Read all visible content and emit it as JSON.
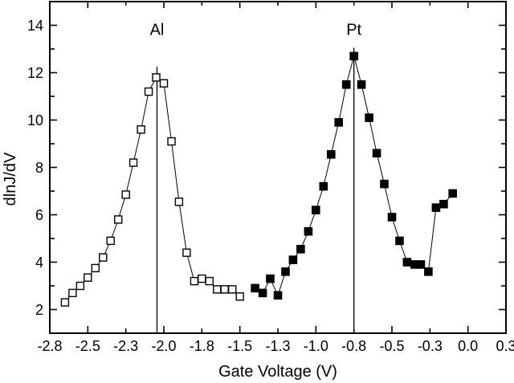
{
  "window": {
    "background": "#ffffff",
    "foreground": "#000000"
  },
  "chart_data": {
    "type": "line",
    "title": "",
    "xlabel": "Gate Voltage (V)",
    "ylabel": "dlnJ/dV",
    "xlim": [
      -2.75,
      0.25
    ],
    "ylim": [
      1,
      15
    ],
    "grid": false,
    "legend": "none",
    "axis_color": "#000000",
    "x_ticks": [
      {
        "value": -2.75,
        "label": "-2.8",
        "major": false
      },
      {
        "value": -2.5,
        "label": "-2.5",
        "major": true
      },
      {
        "value": -2.25,
        "label": "-2.3",
        "major": false
      },
      {
        "value": -2.0,
        "label": "-2.0",
        "major": true
      },
      {
        "value": -1.75,
        "label": "-1.8",
        "major": false
      },
      {
        "value": -1.5,
        "label": "-1.5",
        "major": true
      },
      {
        "value": -1.25,
        "label": "-1.3",
        "major": false
      },
      {
        "value": -1.0,
        "label": "-1.0",
        "major": true
      },
      {
        "value": -0.75,
        "label": "-0.8",
        "major": false
      },
      {
        "value": -0.5,
        "label": "-0.5",
        "major": true
      },
      {
        "value": -0.25,
        "label": "-0.3",
        "major": false
      },
      {
        "value": 0.0,
        "label": "0.0",
        "major": true
      },
      {
        "value": 0.25,
        "label": "0.3",
        "major": false
      }
    ],
    "y_ticks": [
      {
        "value": 2,
        "label": "2",
        "major": true
      },
      {
        "value": 3,
        "label": "",
        "major": false
      },
      {
        "value": 4,
        "label": "4",
        "major": true
      },
      {
        "value": 5,
        "label": "",
        "major": false
      },
      {
        "value": 6,
        "label": "6",
        "major": true
      },
      {
        "value": 7,
        "label": "",
        "major": false
      },
      {
        "value": 8,
        "label": "8",
        "major": true
      },
      {
        "value": 9,
        "label": "",
        "major": false
      },
      {
        "value": 10,
        "label": "10",
        "major": true
      },
      {
        "value": 11,
        "label": "",
        "major": false
      },
      {
        "value": 12,
        "label": "12",
        "major": true
      },
      {
        "value": 13,
        "label": "",
        "major": false
      },
      {
        "value": 14,
        "label": "14",
        "major": true
      }
    ],
    "series": [
      {
        "name": "Al",
        "marker": "open-square",
        "color": "#000000",
        "x": [
          -2.65,
          -2.6,
          -2.55,
          -2.5,
          -2.45,
          -2.4,
          -2.35,
          -2.3,
          -2.25,
          -2.2,
          -2.15,
          -2.1,
          -2.05,
          -2.0,
          -1.95,
          -1.9,
          -1.85,
          -1.8,
          -1.75,
          -1.7,
          -1.65,
          -1.6,
          -1.55,
          -1.5
        ],
        "y": [
          2.3,
          2.7,
          3.0,
          3.35,
          3.75,
          4.2,
          4.9,
          5.8,
          6.85,
          8.2,
          9.6,
          11.2,
          11.8,
          11.55,
          9.1,
          6.55,
          4.4,
          3.2,
          3.3,
          3.2,
          2.85,
          2.85,
          2.85,
          2.55
        ]
      },
      {
        "name": "Pt",
        "marker": "filled-square",
        "color": "#000000",
        "x": [
          -1.4,
          -1.35,
          -1.3,
          -1.25,
          -1.2,
          -1.15,
          -1.1,
          -1.05,
          -1.0,
          -0.95,
          -0.9,
          -0.85,
          -0.8,
          -0.75,
          -0.7,
          -0.65,
          -0.6,
          -0.55,
          -0.5,
          -0.45,
          -0.4,
          -0.35,
          -0.31,
          -0.26,
          -0.21,
          -0.16,
          -0.1
        ],
        "y": [
          2.9,
          2.7,
          3.3,
          2.6,
          3.6,
          4.1,
          4.55,
          5.3,
          6.2,
          7.2,
          8.55,
          9.9,
          11.5,
          12.7,
          11.5,
          10.1,
          8.6,
          7.3,
          5.9,
          4.9,
          4.0,
          3.9,
          3.9,
          3.6,
          6.3,
          6.45,
          6.9
        ]
      }
    ],
    "peak_lines": [
      {
        "series": "Al",
        "x": -2.045,
        "y_bottom": 1,
        "y_top": 12.25
      },
      {
        "series": "Pt",
        "x": -0.75,
        "y_bottom": 1,
        "y_top": 13.05
      }
    ],
    "annotations": [
      {
        "text": "Al",
        "x": -2.045,
        "y": 13.6
      },
      {
        "text": "Pt",
        "x": -0.75,
        "y": 13.6
      }
    ]
  }
}
